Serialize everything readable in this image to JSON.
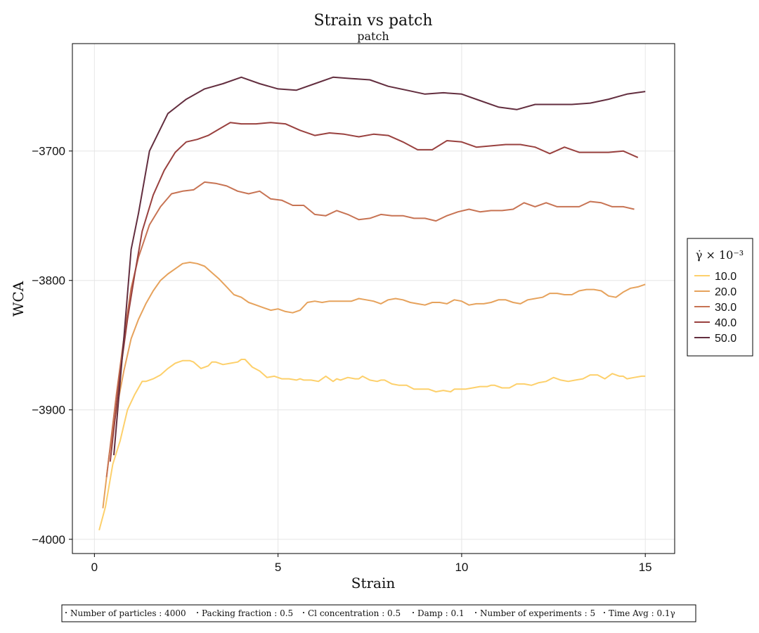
{
  "chart_data": {
    "type": "line",
    "title": "Strain vs patch",
    "subtitle": "patch",
    "xlabel": "Strain",
    "ylabel": "WCA",
    "xlim": [
      -0.6,
      15.8
    ],
    "ylim": [
      -4011,
      -3617
    ],
    "xticks": [
      0,
      5,
      10,
      15
    ],
    "yticks": [
      -4000,
      -3900,
      -3800,
      -3700
    ],
    "grid": true,
    "legend": {
      "title": "γ̇ × 10⁻³",
      "placement": "right",
      "entries": [
        "10.0",
        "20.0",
        "30.0",
        "40.0",
        "50.0"
      ]
    },
    "footer": [
      "Number of particles : 4000",
      "Packing fraction : 0.5",
      "Cl concentration : 0.5",
      "Damp : 0.1",
      "Number of experiments : 5",
      "Time Avg : 0.1γ"
    ],
    "series": [
      {
        "name": "10.0",
        "color": "#fdd06b",
        "x": [
          0.13,
          0.3,
          0.5,
          0.7,
          0.9,
          1.1,
          1.3,
          1.4,
          1.6,
          1.8,
          2.0,
          2.2,
          2.4,
          2.5,
          2.6,
          2.7,
          2.9,
          3.1,
          3.2,
          3.3,
          3.5,
          3.7,
          3.9,
          4.0,
          4.1,
          4.3,
          4.5,
          4.7,
          4.9,
          5.1,
          5.3,
          5.5,
          5.6,
          5.7,
          5.9,
          6.1,
          6.3,
          6.5,
          6.6,
          6.7,
          6.9,
          7.1,
          7.2,
          7.3,
          7.5,
          7.7,
          7.8,
          7.9,
          8.1,
          8.3,
          8.5,
          8.7,
          8.9,
          9.1,
          9.3,
          9.5,
          9.7,
          9.8,
          9.9,
          10.1,
          10.3,
          10.5,
          10.7,
          10.8,
          10.9,
          11.1,
          11.3,
          11.5,
          11.7,
          11.9,
          12.1,
          12.3,
          12.5,
          12.7,
          12.9,
          13.1,
          13.3,
          13.5,
          13.7,
          13.9,
          14.1,
          14.3,
          14.4,
          14.5,
          14.7,
          14.9,
          15.0
        ],
        "y": [
          -3993,
          -3975,
          -3942,
          -3924,
          -3900,
          -3888,
          -3878,
          -3878,
          -3876,
          -3873,
          -3868,
          -3864,
          -3862,
          -3862,
          -3862,
          -3863,
          -3868,
          -3866,
          -3863,
          -3863,
          -3865,
          -3864,
          -3863,
          -3861,
          -3861,
          -3867,
          -3870,
          -3875,
          -3874,
          -3876,
          -3876,
          -3877,
          -3876,
          -3877,
          -3877,
          -3878,
          -3874,
          -3878,
          -3876,
          -3877,
          -3875,
          -3876,
          -3876,
          -3874,
          -3877,
          -3878,
          -3877,
          -3877,
          -3880,
          -3881,
          -3881,
          -3884,
          -3884,
          -3884,
          -3886,
          -3885,
          -3886,
          -3884,
          -3884,
          -3884,
          -3883,
          -3882,
          -3882,
          -3881,
          -3881,
          -3883,
          -3883,
          -3880,
          -3880,
          -3881,
          -3879,
          -3878,
          -3875,
          -3877,
          -3878,
          -3877,
          -3876,
          -3873,
          -3873,
          -3876,
          -3872,
          -3874,
          -3874,
          -3876,
          -3875,
          -3874,
          -3874
        ]
      },
      {
        "name": "20.0",
        "color": "#e6a25c",
        "x": [
          0.23,
          0.4,
          0.6,
          0.8,
          1.0,
          1.2,
          1.4,
          1.6,
          1.8,
          2.0,
          2.2,
          2.4,
          2.6,
          2.8,
          3.0,
          3.2,
          3.4,
          3.6,
          3.8,
          4.0,
          4.2,
          4.4,
          4.6,
          4.8,
          5.0,
          5.2,
          5.4,
          5.6,
          5.8,
          6.0,
          6.2,
          6.4,
          6.6,
          6.8,
          7.0,
          7.2,
          7.4,
          7.6,
          7.8,
          8.0,
          8.2,
          8.4,
          8.6,
          8.8,
          9.0,
          9.2,
          9.4,
          9.6,
          9.8,
          10.0,
          10.2,
          10.4,
          10.6,
          10.8,
          11.0,
          11.2,
          11.4,
          11.6,
          11.8,
          12.0,
          12.2,
          12.4,
          12.6,
          12.8,
          13.0,
          13.2,
          13.4,
          13.6,
          13.8,
          14.0,
          14.2,
          14.4,
          14.6,
          14.8,
          15.0
        ],
        "y": [
          -3976,
          -3935,
          -3900,
          -3870,
          -3845,
          -3830,
          -3818,
          -3808,
          -3800,
          -3795,
          -3791,
          -3787,
          -3786,
          -3787,
          -3789,
          -3794,
          -3799,
          -3805,
          -3811,
          -3813,
          -3817,
          -3819,
          -3821,
          -3823,
          -3822,
          -3824,
          -3825,
          -3823,
          -3817,
          -3816,
          -3817,
          -3816,
          -3816,
          -3816,
          -3816,
          -3814,
          -3815,
          -3816,
          -3818,
          -3815,
          -3814,
          -3815,
          -3817,
          -3818,
          -3819,
          -3817,
          -3817,
          -3818,
          -3815,
          -3816,
          -3819,
          -3818,
          -3818,
          -3817,
          -3815,
          -3815,
          -3817,
          -3818,
          -3815,
          -3814,
          -3813,
          -3810,
          -3810,
          -3811,
          -3811,
          -3808,
          -3807,
          -3807,
          -3808,
          -3812,
          -3813,
          -3809,
          -3806,
          -3805,
          -3803
        ]
      },
      {
        "name": "30.0",
        "color": "#c77353",
        "x": [
          0.33,
          0.6,
          0.8,
          1.0,
          1.2,
          1.5,
          1.8,
          2.1,
          2.4,
          2.7,
          3.0,
          3.3,
          3.6,
          3.9,
          4.2,
          4.5,
          4.8,
          5.1,
          5.4,
          5.7,
          6.0,
          6.3,
          6.6,
          6.9,
          7.2,
          7.5,
          7.8,
          8.1,
          8.4,
          8.7,
          9.0,
          9.3,
          9.6,
          9.9,
          10.2,
          10.5,
          10.8,
          11.1,
          11.4,
          11.7,
          12.0,
          12.3,
          12.6,
          12.9,
          13.2,
          13.5,
          13.8,
          14.1,
          14.4,
          14.7
        ],
        "y": [
          -3952,
          -3888,
          -3845,
          -3806,
          -3782,
          -3757,
          -3743,
          -3733,
          -3731,
          -3730,
          -3724,
          -3725,
          -3727,
          -3731,
          -3733,
          -3731,
          -3737,
          -3738,
          -3742,
          -3742,
          -3749,
          -3750,
          -3746,
          -3749,
          -3753,
          -3752,
          -3749,
          -3750,
          -3750,
          -3752,
          -3752,
          -3754,
          -3750,
          -3747,
          -3745,
          -3747,
          -3746,
          -3746,
          -3745,
          -3740,
          -3743,
          -3740,
          -3743,
          -3743,
          -3743,
          -3739,
          -3740,
          -3743,
          -3743,
          -3745
        ]
      },
      {
        "name": "40.0",
        "color": "#99413f",
        "x": [
          0.43,
          0.7,
          0.9,
          1.1,
          1.3,
          1.6,
          1.9,
          2.2,
          2.5,
          2.8,
          3.1,
          3.4,
          3.7,
          4.0,
          4.4,
          4.8,
          5.2,
          5.6,
          6.0,
          6.4,
          6.8,
          7.2,
          7.6,
          8.0,
          8.4,
          8.8,
          9.2,
          9.6,
          10.0,
          10.4,
          10.8,
          11.2,
          11.6,
          12.0,
          12.4,
          12.8,
          13.2,
          13.6,
          14.0,
          14.4,
          14.8
        ],
        "y": [
          -3940,
          -3872,
          -3830,
          -3795,
          -3762,
          -3734,
          -3715,
          -3701,
          -3693,
          -3691,
          -3688,
          -3683,
          -3678,
          -3679,
          -3679,
          -3678,
          -3679,
          -3684,
          -3688,
          -3686,
          -3687,
          -3689,
          -3687,
          -3688,
          -3693,
          -3699,
          -3699,
          -3692,
          -3693,
          -3697,
          -3696,
          -3695,
          -3695,
          -3697,
          -3702,
          -3697,
          -3701,
          -3701,
          -3701,
          -3700,
          -3705
        ]
      },
      {
        "name": "50.0",
        "color": "#632e3f",
        "x": [
          0.53,
          0.8,
          1.0,
          1.2,
          1.5,
          2.0,
          2.5,
          3.0,
          3.5,
          4.0,
          4.5,
          5.0,
          5.5,
          6.0,
          6.5,
          7.0,
          7.5,
          8.0,
          8.5,
          9.0,
          9.5,
          10.0,
          10.5,
          11.0,
          11.5,
          12.0,
          12.5,
          13.0,
          13.5,
          14.0,
          14.5,
          15.0
        ],
        "y": [
          -3935,
          -3845,
          -3776,
          -3748,
          -3700,
          -3671,
          -3660,
          -3652,
          -3648,
          -3643,
          -3648,
          -3652,
          -3653,
          -3648,
          -3643,
          -3644,
          -3645,
          -3650,
          -3653,
          -3656,
          -3655,
          -3656,
          -3661,
          -3666,
          -3668,
          -3664,
          -3664,
          -3664,
          -3663,
          -3660,
          -3656,
          -3654
        ]
      }
    ]
  }
}
